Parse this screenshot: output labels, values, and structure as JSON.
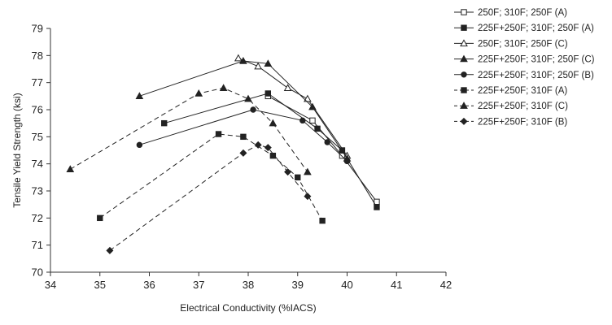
{
  "chart_data": {
    "type": "line",
    "xlabel": "Electrical Conductivity (%IACS)",
    "ylabel": "Tensile Yield Strength (ksi)",
    "xlim": [
      34,
      42
    ],
    "ylim": [
      70,
      79
    ],
    "xticks": [
      34,
      35,
      36,
      37,
      38,
      39,
      40,
      41,
      42
    ],
    "yticks": [
      70,
      71,
      72,
      73,
      74,
      75,
      76,
      77,
      78,
      79
    ],
    "grid": false,
    "legend_position": "top-right",
    "series": [
      {
        "name": "250F; 310F; 250F (A)",
        "marker": "square-open",
        "dash": "solid",
        "x": [
          38.4,
          39.3,
          39.9,
          40.6
        ],
        "y": [
          76.5,
          75.6,
          74.3,
          72.6
        ]
      },
      {
        "name": "225F+250F; 310F; 250F (A)",
        "marker": "square-filled",
        "dash": "solid",
        "x": [
          36.3,
          38.4,
          39.4,
          39.9,
          40.6
        ],
        "y": [
          75.5,
          76.6,
          75.3,
          74.5,
          72.4
        ]
      },
      {
        "name": "250F; 310F; 250F (C)",
        "marker": "triangle-open",
        "dash": "solid",
        "x": [
          37.8,
          38.2,
          38.8,
          39.2,
          40.0
        ],
        "y": [
          77.9,
          77.6,
          76.8,
          76.4,
          74.3
        ]
      },
      {
        "name": "225F+250F; 310F; 250F (C)",
        "marker": "triangle-filled",
        "dash": "solid",
        "x": [
          35.8,
          37.9,
          38.4,
          39.3,
          40.0
        ],
        "y": [
          76.5,
          77.8,
          77.7,
          76.1,
          74.2
        ]
      },
      {
        "name": "225F+250F; 310F; 250F (B)",
        "marker": "circle-filled",
        "dash": "solid",
        "x": [
          35.8,
          38.1,
          39.1,
          39.6,
          40.0
        ],
        "y": [
          74.7,
          76.0,
          75.6,
          74.8,
          74.1
        ]
      },
      {
        "name": "225F+250F; 310F (A)",
        "marker": "square-filled",
        "dash": "dashed",
        "x": [
          35.0,
          37.4,
          37.9,
          38.5,
          39.0,
          39.5
        ],
        "y": [
          72.0,
          75.1,
          75.0,
          74.3,
          73.5,
          71.9
        ]
      },
      {
        "name": "225F+250F; 310F (C)",
        "marker": "triangle-filled",
        "dash": "dashed",
        "x": [
          34.4,
          37.0,
          37.5,
          38.0,
          38.5,
          39.2
        ],
        "y": [
          73.8,
          76.6,
          76.8,
          76.4,
          75.5,
          73.7
        ]
      },
      {
        "name": "225F+250F; 310F (B)",
        "marker": "diamond-filled",
        "dash": "dashed",
        "x": [
          35.2,
          37.9,
          38.2,
          38.4,
          38.8,
          39.2
        ],
        "y": [
          70.8,
          74.4,
          74.7,
          74.6,
          73.7,
          72.8
        ]
      }
    ]
  }
}
